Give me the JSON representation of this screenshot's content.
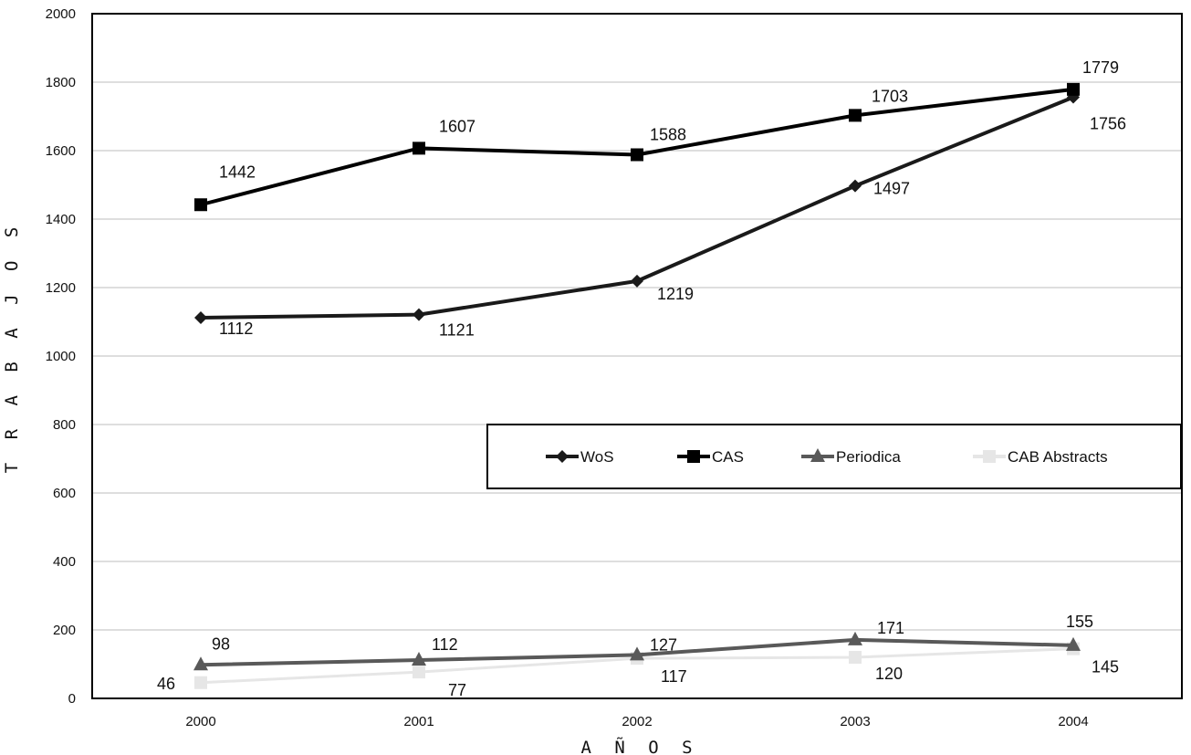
{
  "chart_data": {
    "type": "line",
    "title": "",
    "xlabel": "A Ñ O S",
    "ylabel": "T R A B A J O S",
    "x": [
      "2000",
      "2001",
      "2002",
      "2003",
      "2004"
    ],
    "ylim": [
      0,
      2000
    ],
    "yticks": [
      "0",
      "200",
      "400",
      "600",
      "800",
      "1000",
      "1200",
      "1400",
      "1600",
      "1800",
      "2000"
    ],
    "grid": true,
    "legend_position": "center-right",
    "series": [
      {
        "name": "WoS",
        "values": [
          1112,
          1121,
          1219,
          1497,
          1756
        ],
        "labels": [
          "1112",
          "1121",
          "1219",
          "1497",
          "1756"
        ],
        "marker": "diamond",
        "color": "#1a1a1a"
      },
      {
        "name": "CAS",
        "values": [
          1442,
          1607,
          1588,
          1703,
          1779
        ],
        "labels": [
          "1442",
          "1607",
          "1588",
          "1703",
          "1779"
        ],
        "marker": "square",
        "color": "#000000"
      },
      {
        "name": "Periodica",
        "values": [
          98,
          112,
          127,
          171,
          155
        ],
        "labels": [
          "98",
          "112",
          "127",
          "171",
          "155"
        ],
        "marker": "triangle",
        "color": "#595959"
      },
      {
        "name": "CAB Abstracts",
        "values": [
          46,
          77,
          117,
          120,
          145
        ],
        "labels": [
          "46",
          "77",
          "117",
          "120",
          "145"
        ],
        "marker": "square",
        "color": "#e6e6e6"
      }
    ]
  }
}
